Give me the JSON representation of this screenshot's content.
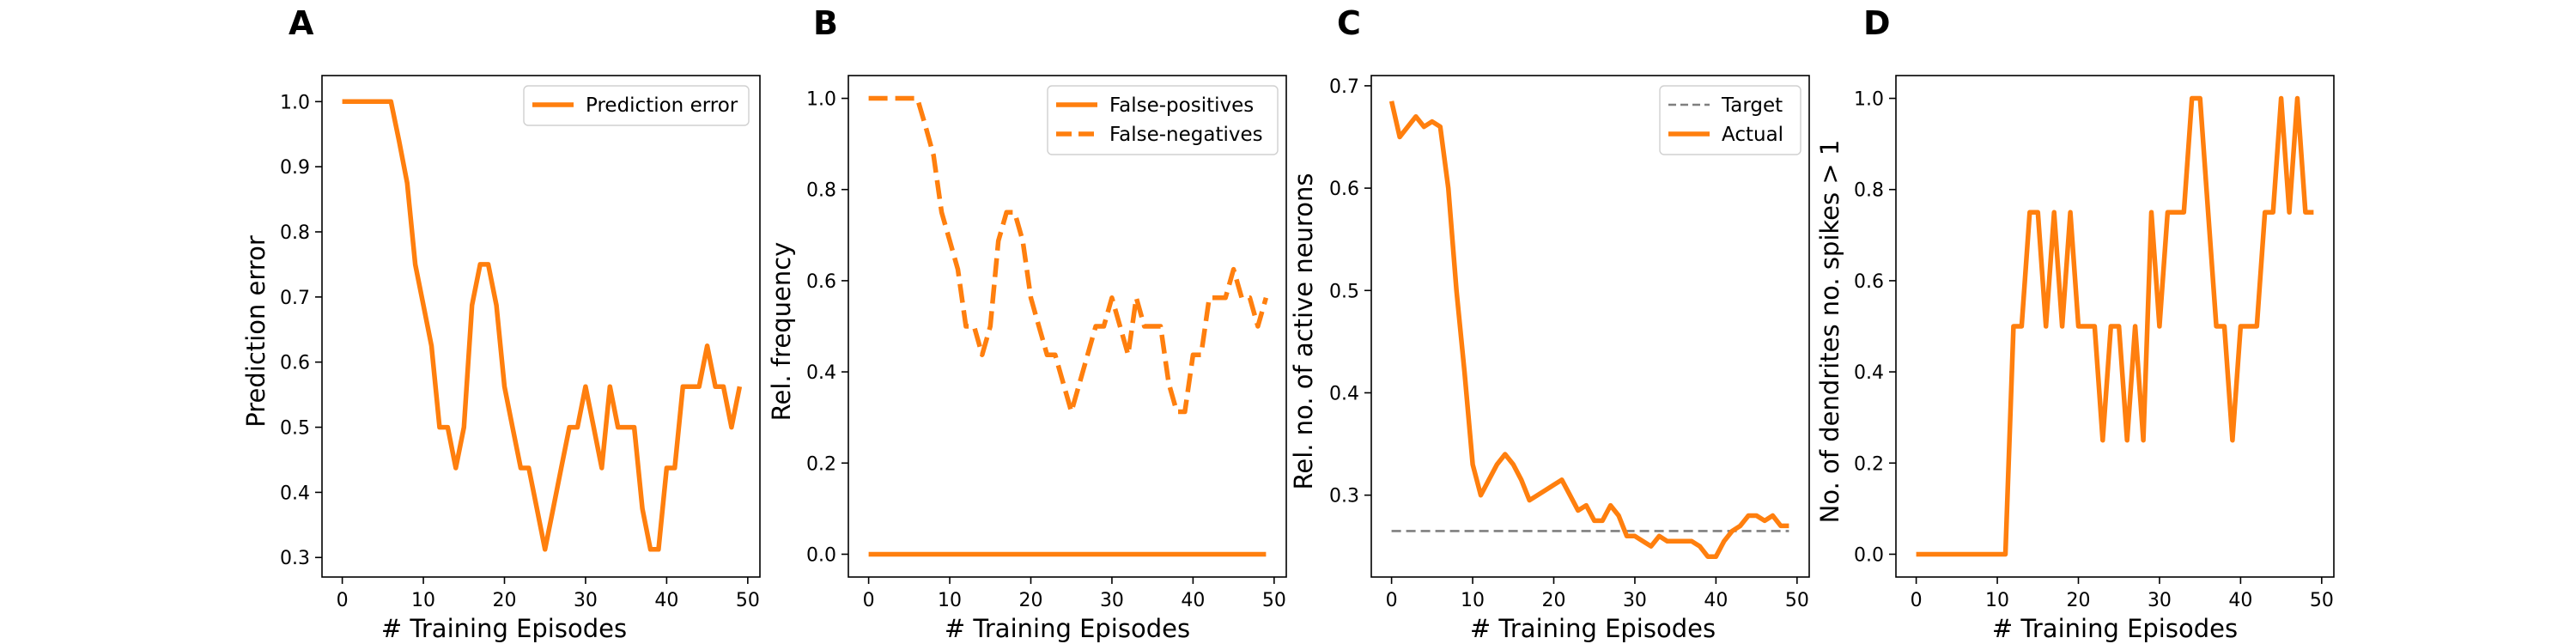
{
  "colors": {
    "series": "#ff7f0e",
    "target": "#7f7f7f",
    "axis": "#000000",
    "legend_border": "#d0d0d0"
  },
  "chart_data": [
    {
      "panel_letter": "A",
      "type": "line",
      "xlabel": "# Training Episodes",
      "ylabel": "Prediction error",
      "xlim": [
        -2.5,
        51.5
      ],
      "ylim": [
        0.27,
        1.04
      ],
      "xticks": [
        "0",
        "10",
        "20",
        "30",
        "40",
        "50"
      ],
      "yticks": [
        "0.3",
        "0.4",
        "0.5",
        "0.6",
        "0.7",
        "0.8",
        "0.9",
        "1.0"
      ],
      "legend": "upper right",
      "grid": false,
      "series": [
        {
          "name": "Prediction error",
          "style": "solid",
          "x": [
            0,
            1,
            2,
            3,
            4,
            5,
            6,
            7,
            8,
            9,
            10,
            11,
            12,
            13,
            14,
            15,
            16,
            17,
            18,
            19,
            20,
            21,
            22,
            23,
            24,
            25,
            26,
            27,
            28,
            29,
            30,
            31,
            32,
            33,
            34,
            35,
            36,
            37,
            38,
            39,
            40,
            41,
            42,
            43,
            44,
            45,
            46,
            47,
            48,
            49
          ],
          "y": [
            1.0,
            1.0,
            1.0,
            1.0,
            1.0,
            1.0,
            1.0,
            0.94,
            0.875,
            0.75,
            0.6875,
            0.625,
            0.5,
            0.5,
            0.4375,
            0.5,
            0.6875,
            0.75,
            0.75,
            0.6875,
            0.5625,
            0.5,
            0.4375,
            0.4375,
            0.375,
            0.3125,
            0.375,
            0.4375,
            0.5,
            0.5,
            0.5625,
            0.5,
            0.4375,
            0.5625,
            0.5,
            0.5,
            0.5,
            0.375,
            0.3125,
            0.3125,
            0.4375,
            0.4375,
            0.5625,
            0.5625,
            0.5625,
            0.625,
            0.5625,
            0.5625,
            0.5,
            0.5625
          ]
        }
      ]
    },
    {
      "panel_letter": "B",
      "type": "line",
      "xlabel": "# Training Episodes",
      "ylabel": "Rel. frequency",
      "xlim": [
        -2.5,
        51.5
      ],
      "ylim": [
        -0.05,
        1.05
      ],
      "xticks": [
        "0",
        "10",
        "20",
        "30",
        "40",
        "50"
      ],
      "yticks": [
        "0.0",
        "0.2",
        "0.4",
        "0.6",
        "0.8",
        "1.0"
      ],
      "legend": "upper right",
      "grid": false,
      "series": [
        {
          "name": "False-positives",
          "style": "solid",
          "x": [
            0,
            49
          ],
          "y": [
            0,
            0
          ]
        },
        {
          "name": "False-negatives",
          "style": "dashed",
          "x": [
            0,
            1,
            2,
            3,
            4,
            5,
            6,
            7,
            8,
            9,
            10,
            11,
            12,
            13,
            14,
            15,
            16,
            17,
            18,
            19,
            20,
            21,
            22,
            23,
            24,
            25,
            26,
            27,
            28,
            29,
            30,
            31,
            32,
            33,
            34,
            35,
            36,
            37,
            38,
            39,
            40,
            41,
            42,
            43,
            44,
            45,
            46,
            47,
            48,
            49
          ],
          "y": [
            1.0,
            1.0,
            1.0,
            1.0,
            1.0,
            1.0,
            1.0,
            0.94,
            0.875,
            0.75,
            0.6875,
            0.625,
            0.5,
            0.5,
            0.4375,
            0.5,
            0.6875,
            0.75,
            0.75,
            0.6875,
            0.5625,
            0.5,
            0.4375,
            0.4375,
            0.375,
            0.3125,
            0.375,
            0.4375,
            0.5,
            0.5,
            0.5625,
            0.5,
            0.4375,
            0.5625,
            0.5,
            0.5,
            0.5,
            0.375,
            0.3125,
            0.3125,
            0.4375,
            0.4375,
            0.5625,
            0.5625,
            0.5625,
            0.625,
            0.5625,
            0.5625,
            0.5,
            0.5625
          ]
        }
      ]
    },
    {
      "panel_letter": "C",
      "type": "line",
      "xlabel": "# Training Episodes",
      "ylabel": "Rel. no. of active neurons",
      "xlim": [
        -2.5,
        51.5
      ],
      "ylim": [
        0.22,
        0.71
      ],
      "xticks": [
        "0",
        "10",
        "20",
        "30",
        "40",
        "50"
      ],
      "yticks": [
        "0.3",
        "0.4",
        "0.5",
        "0.6",
        "0.7"
      ],
      "legend": "upper right",
      "grid": false,
      "series": [
        {
          "name": "Target",
          "style": "dashed-thin",
          "x": [
            0,
            49
          ],
          "y": [
            0.265,
            0.265
          ]
        },
        {
          "name": "Actual",
          "style": "solid",
          "x": [
            0,
            1,
            2,
            3,
            4,
            5,
            6,
            7,
            8,
            9,
            10,
            11,
            12,
            13,
            14,
            15,
            16,
            17,
            18,
            19,
            20,
            21,
            22,
            23,
            24,
            25,
            26,
            27,
            28,
            29,
            30,
            31,
            32,
            33,
            34,
            35,
            36,
            37,
            38,
            39,
            40,
            41,
            42,
            43,
            44,
            45,
            46,
            47,
            48,
            49
          ],
          "y": [
            0.685,
            0.65,
            0.66,
            0.67,
            0.66,
            0.665,
            0.66,
            0.6,
            0.5,
            0.42,
            0.33,
            0.3,
            0.315,
            0.33,
            0.34,
            0.33,
            0.315,
            0.295,
            0.3,
            0.305,
            0.31,
            0.315,
            0.3,
            0.285,
            0.29,
            0.275,
            0.275,
            0.29,
            0.28,
            0.26,
            0.26,
            0.255,
            0.25,
            0.26,
            0.255,
            0.255,
            0.255,
            0.255,
            0.25,
            0.24,
            0.24,
            0.255,
            0.265,
            0.27,
            0.28,
            0.28,
            0.275,
            0.28,
            0.27,
            0.27
          ]
        }
      ]
    },
    {
      "panel_letter": "D",
      "type": "line",
      "xlabel": "# Training Episodes",
      "ylabel": "No. of dendrites no. spikes > 1",
      "xlim": [
        -2.5,
        51.5
      ],
      "ylim": [
        -0.05,
        1.05
      ],
      "xticks": [
        "0",
        "10",
        "20",
        "30",
        "40",
        "50"
      ],
      "yticks": [
        "0.0",
        "0.2",
        "0.4",
        "0.6",
        "0.8",
        "1.0"
      ],
      "legend": "none",
      "grid": false,
      "series": [
        {
          "style": "solid",
          "x": [
            0,
            1,
            2,
            3,
            4,
            5,
            6,
            7,
            8,
            9,
            10,
            11,
            12,
            13,
            14,
            15,
            16,
            17,
            18,
            19,
            20,
            21,
            22,
            23,
            24,
            25,
            26,
            27,
            28,
            29,
            30,
            31,
            32,
            33,
            34,
            35,
            36,
            37,
            38,
            39,
            40,
            41,
            42,
            43,
            44,
            45,
            46,
            47,
            48,
            49
          ],
          "y": [
            0,
            0,
            0,
            0,
            0,
            0,
            0,
            0,
            0,
            0,
            0,
            0,
            0.5,
            0.5,
            0.75,
            0.75,
            0.5,
            0.75,
            0.5,
            0.75,
            0.5,
            0.5,
            0.5,
            0.25,
            0.5,
            0.5,
            0.25,
            0.5,
            0.25,
            0.75,
            0.5,
            0.75,
            0.75,
            0.75,
            1.0,
            1.0,
            0.75,
            0.5,
            0.5,
            0.25,
            0.5,
            0.5,
            0.5,
            0.75,
            0.75,
            1.0,
            0.75,
            1.0,
            0.75,
            0.75
          ]
        }
      ]
    }
  ]
}
